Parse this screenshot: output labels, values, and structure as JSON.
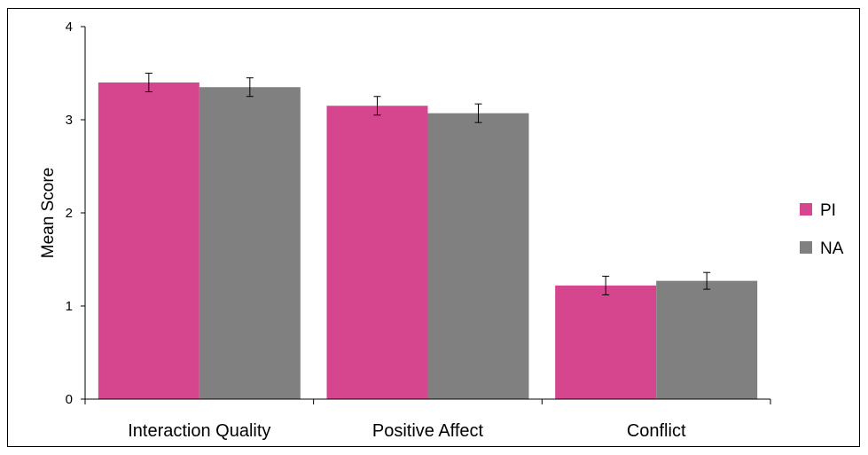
{
  "chart_data": {
    "type": "bar",
    "title": "",
    "xlabel": "",
    "ylabel": "Mean Score",
    "ylim": [
      0,
      4
    ],
    "yticks": [
      "0",
      "1",
      "2",
      "3",
      "4"
    ],
    "categories": [
      "Interaction Quality",
      "Positive Affect",
      "Conflict"
    ],
    "series": [
      {
        "name": "PI",
        "color": "#D6468F",
        "values": [
          3.4,
          3.15,
          1.22
        ],
        "error": [
          0.1,
          0.1,
          0.1
        ]
      },
      {
        "name": "NA",
        "color": "#808080",
        "values": [
          3.35,
          3.07,
          1.27
        ],
        "error": [
          0.1,
          0.1,
          0.09
        ]
      }
    ],
    "grid": false,
    "legend_position": "right"
  }
}
